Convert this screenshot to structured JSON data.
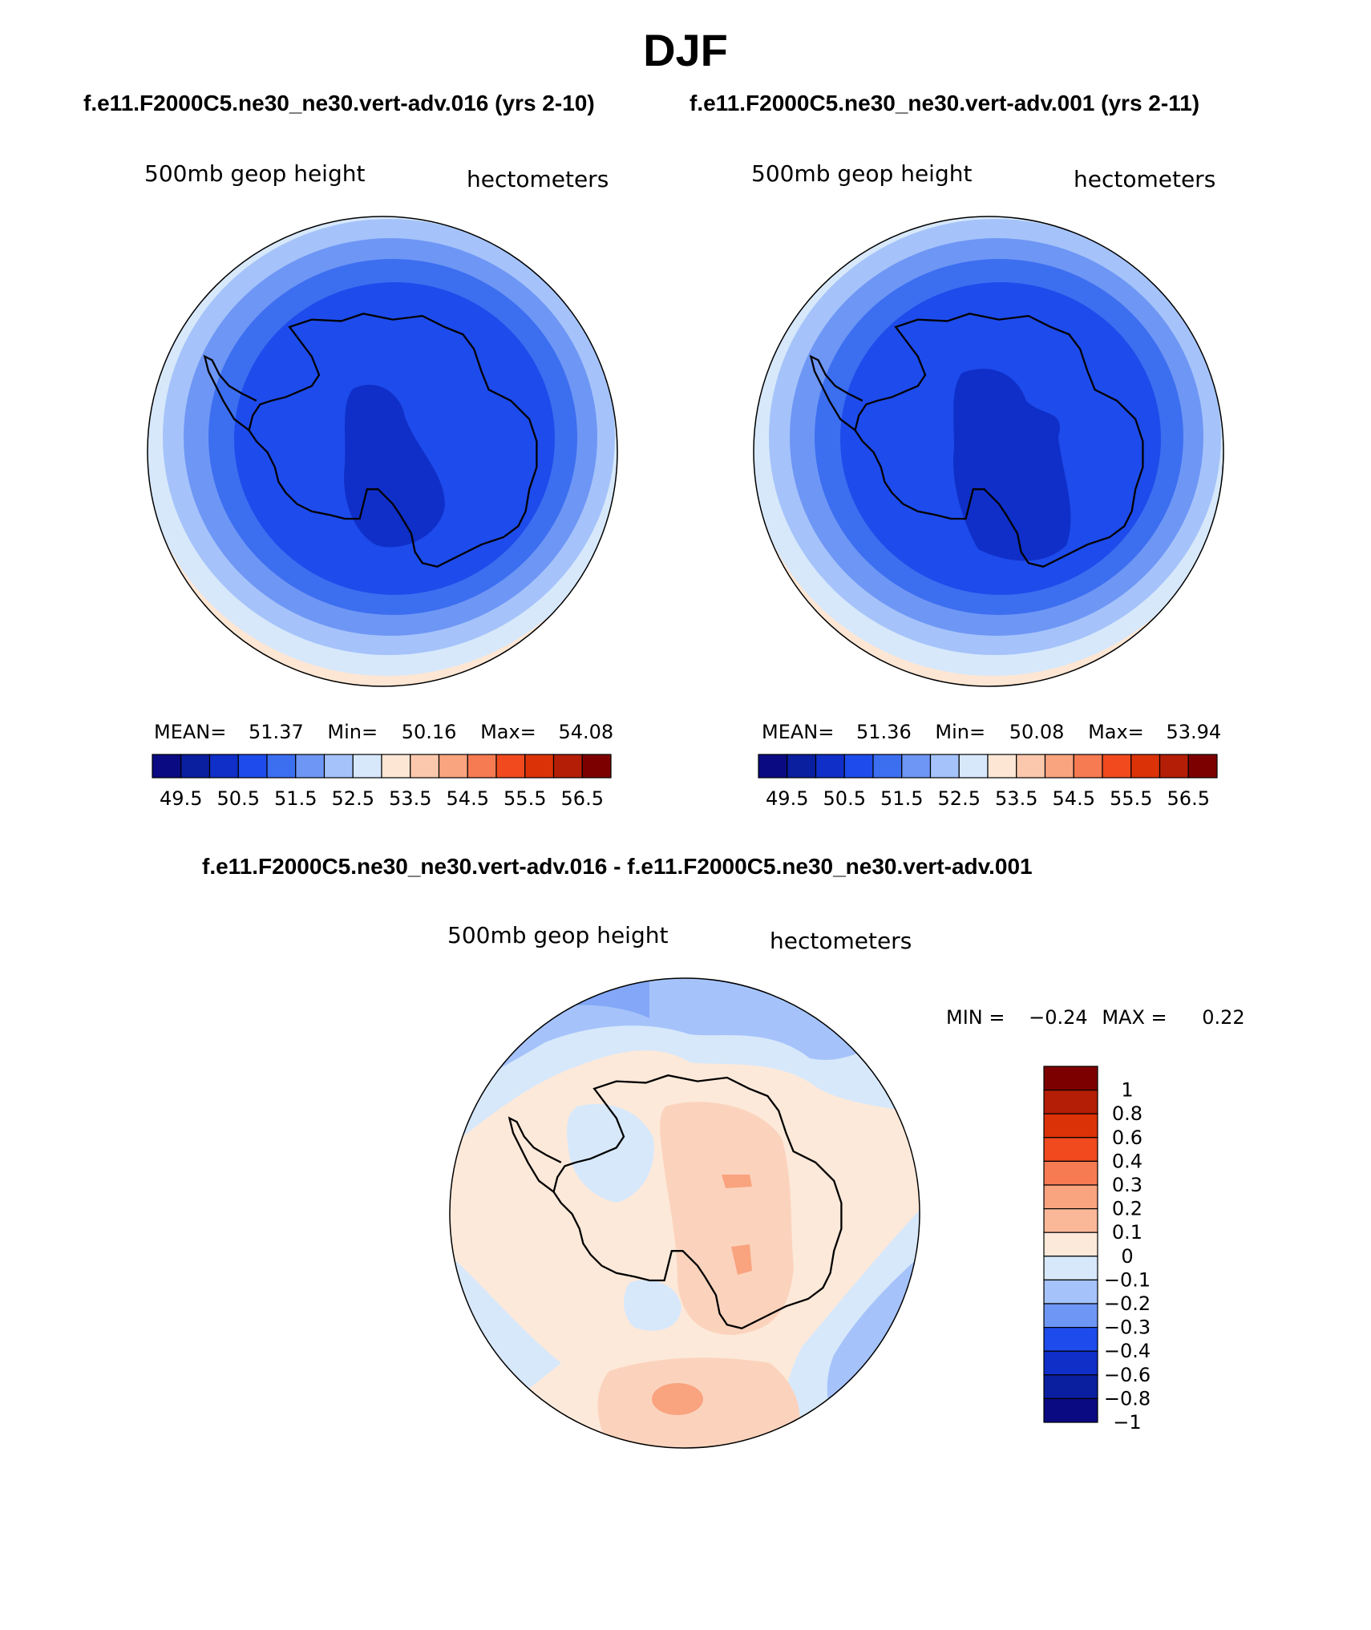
{
  "title": "DJF",
  "subtitles": {
    "left": "f.e11.F2000C5.ne30_ne30.vert-adv.016 (yrs 2-10)",
    "right": "f.e11.F2000C5.ne30_ne30.vert-adv.001 (yrs 2-11)",
    "diff": "f.e11.F2000C5.ne30_ne30.vert-adv.016 - f.e11.F2000C5.ne30_ne30.vert-adv.001"
  },
  "colors": {
    "abs_palette": [
      "#0a0a82",
      "#0a1ea0",
      "#0f2fc8",
      "#1e4beb",
      "#3c6ef0",
      "#6e96f5",
      "#a5c3fa",
      "#d7e8fb",
      "#fde6d4",
      "#fcc8ad",
      "#f9a37f",
      "#f67a52",
      "#f04a1e",
      "#dc3208",
      "#b41e06",
      "#7d0000"
    ],
    "diff_palette": [
      "#0a0a82",
      "#0a1ea0",
      "#0f2fc8",
      "#1e4beb",
      "#6e96f5",
      "#a5c3fa",
      "#d7e8fb",
      "#fde9d9",
      "#fbb899",
      "#f9a37f",
      "#f67a52",
      "#f04a1e",
      "#dc3208",
      "#b41e06",
      "#7d0000"
    ]
  },
  "chart_data": [
    {
      "type": "heatmap",
      "name": "left-map",
      "projection": "south-polar stereographic",
      "field_label": "500mb geop height",
      "units_label": "hectometers",
      "stats": {
        "mean_label": "MEAN=",
        "mean": "51.37",
        "min_label": "Min=",
        "min": "50.16",
        "max_label": "Max=",
        "max": "54.08"
      },
      "colorbar_ticks": [
        "49.5",
        "50.5",
        "51.5",
        "52.5",
        "53.5",
        "54.5",
        "55.5",
        "56.5"
      ]
    },
    {
      "type": "heatmap",
      "name": "right-map",
      "projection": "south-polar stereographic",
      "field_label": "500mb geop height",
      "units_label": "hectometers",
      "stats": {
        "mean_label": "MEAN=",
        "mean": "51.36",
        "min_label": "Min=",
        "min": "50.08",
        "max_label": "Max=",
        "max": "53.94"
      },
      "colorbar_ticks": [
        "49.5",
        "50.5",
        "51.5",
        "52.5",
        "53.5",
        "54.5",
        "55.5",
        "56.5"
      ]
    },
    {
      "type": "heatmap",
      "name": "difference-map",
      "projection": "south-polar stereographic",
      "field_label": "500mb geop height",
      "units_label": "hectometers",
      "minmax": {
        "min_label": "MIN =",
        "min": "−0.24",
        "max_label": "MAX =",
        "max": "0.22"
      },
      "colorbar_ticks": [
        "1",
        "0.8",
        "0.6",
        "0.4",
        "0.3",
        "0.2",
        "0.1",
        "0",
        "−0.1",
        "−0.2",
        "−0.3",
        "−0.4",
        "−0.6",
        "−0.8",
        "−1"
      ]
    }
  ]
}
